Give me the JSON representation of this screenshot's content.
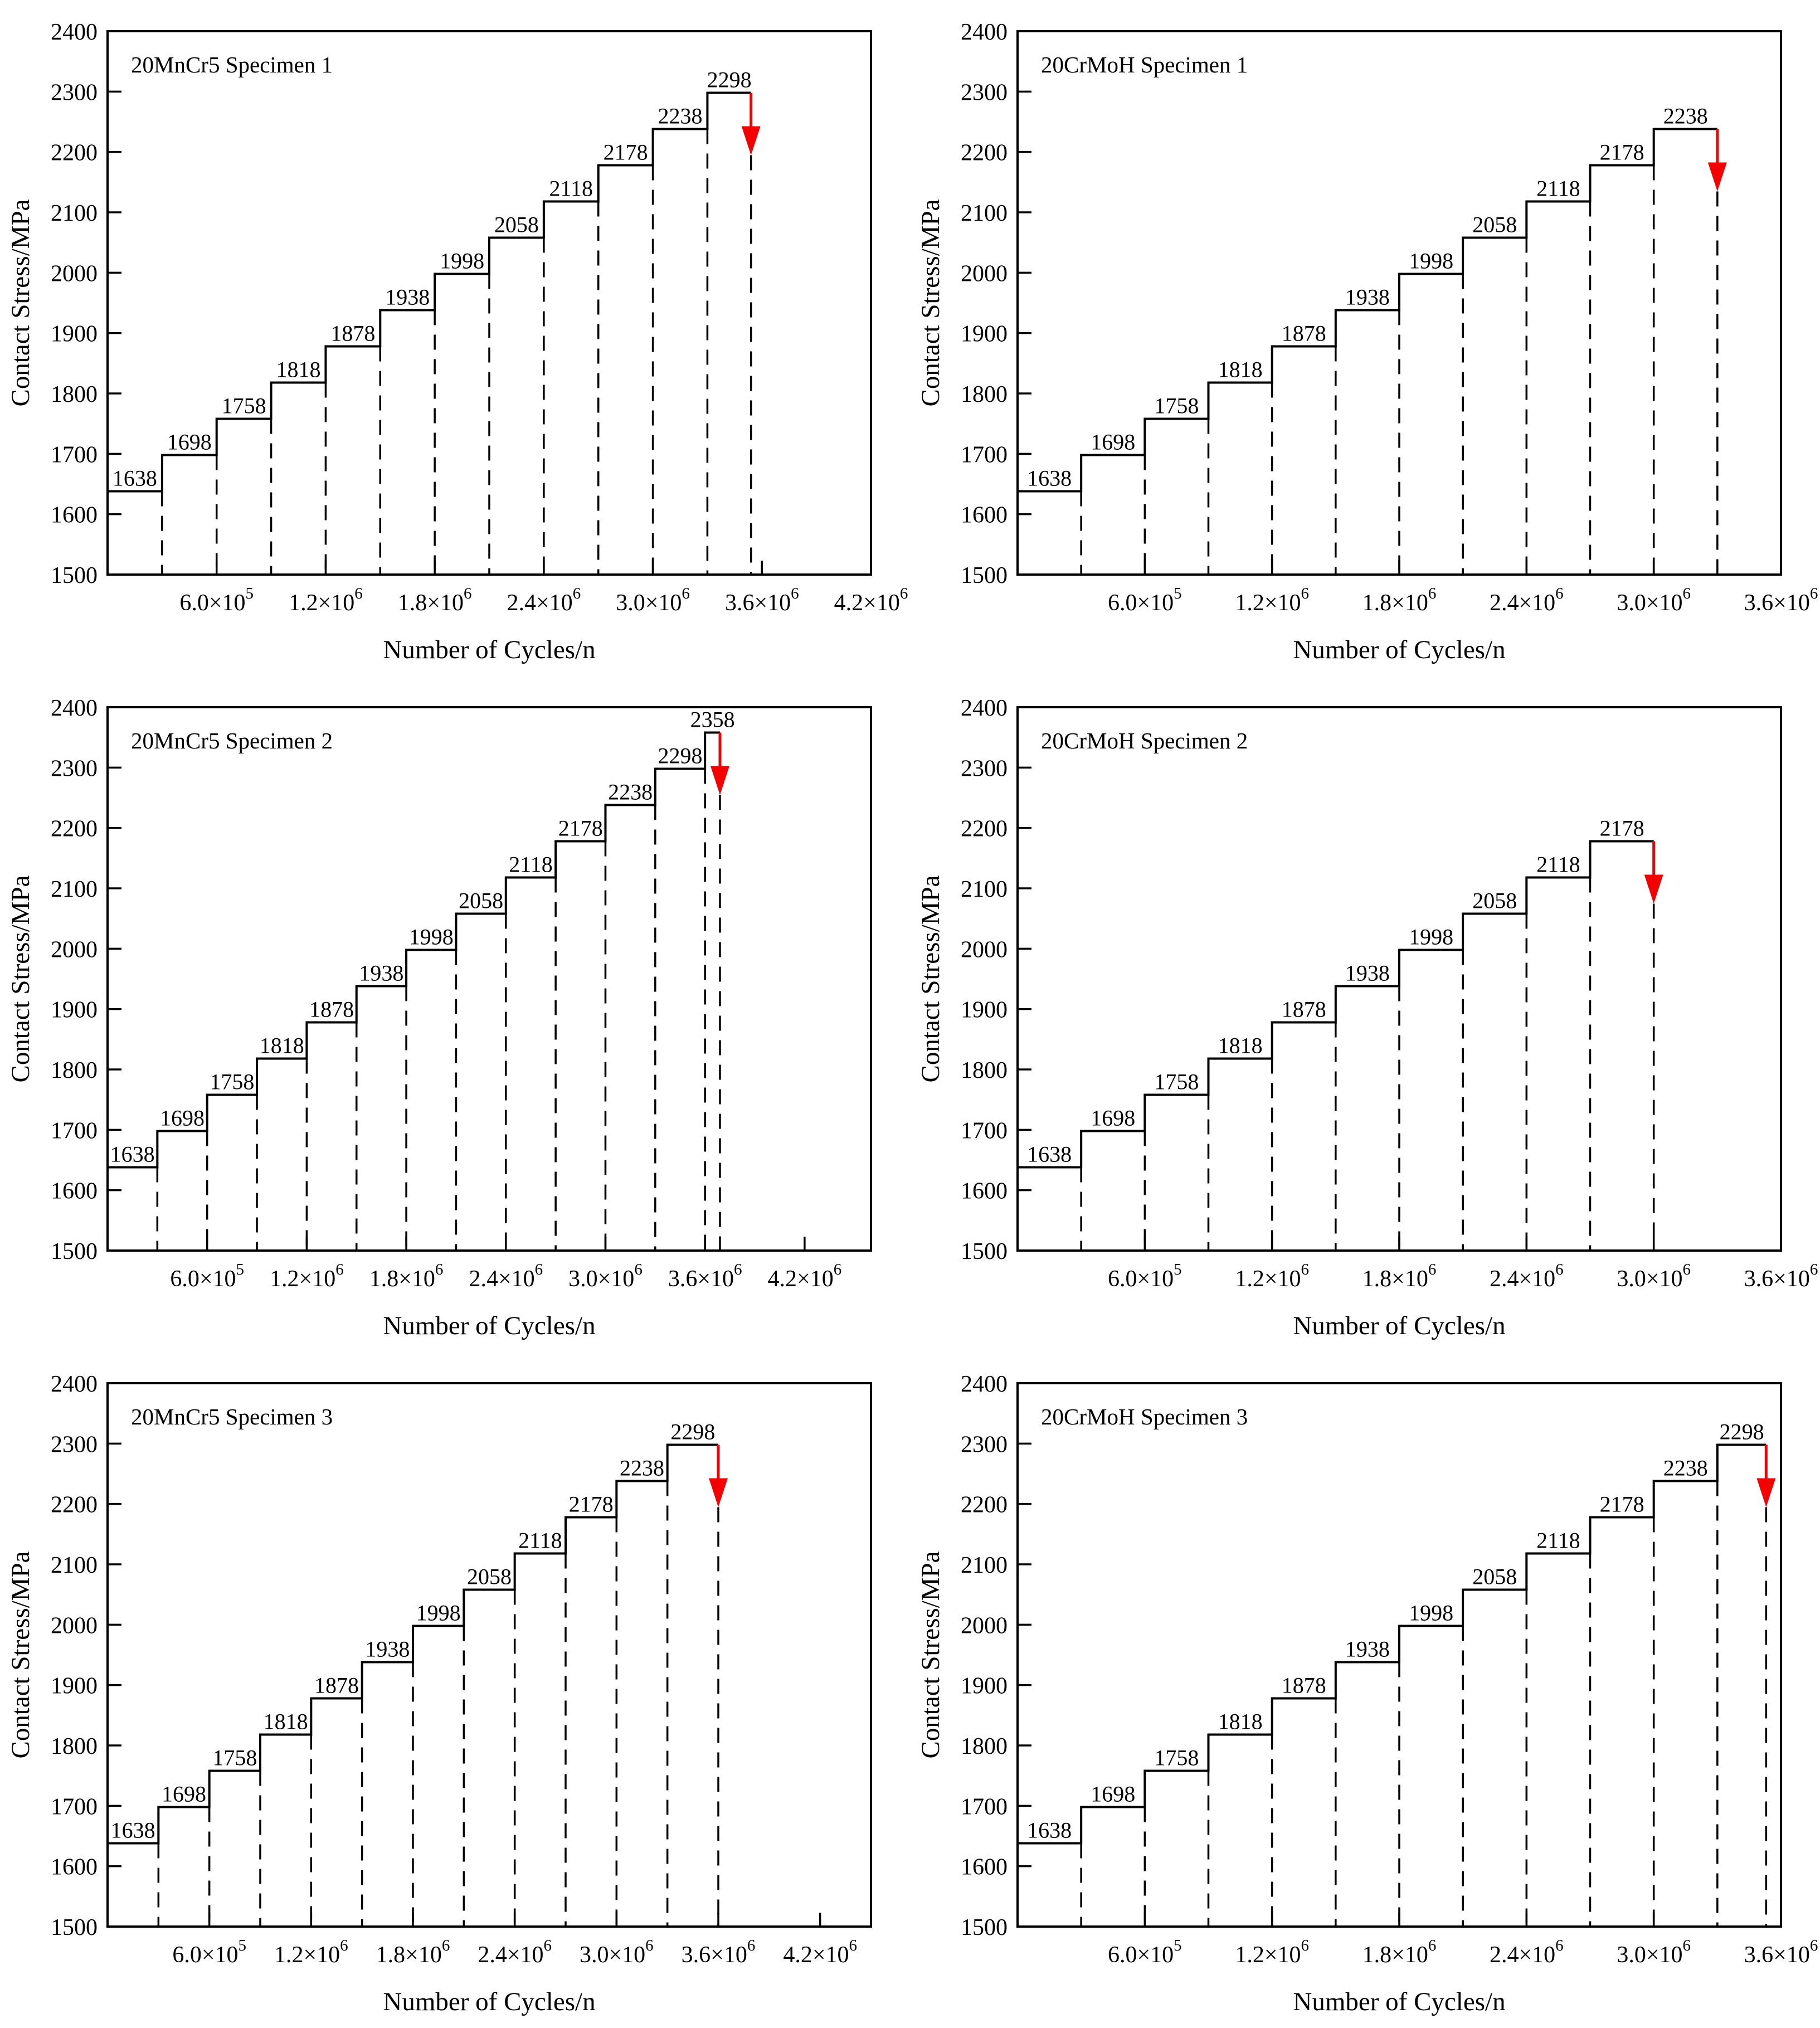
{
  "figure": {
    "background_color": "#ffffff",
    "line_color": "#000000",
    "arrow_color": "#f50000",
    "xlabel": "Number of Cycles/n",
    "ylabel": "Contact Stress/MPa",
    "ylim": [
      1500,
      2400
    ],
    "y_tick_step": 100,
    "y_tick_labels": [
      "1500",
      "1600",
      "1700",
      "1800",
      "1900",
      "2000",
      "2100",
      "2200",
      "2300",
      "2400"
    ]
  },
  "chart_data": [
    {
      "type": "step",
      "title": "20MnCr5 Specimen 1",
      "xlabel": "Number of Cycles/n",
      "ylabel": "Contact Stress/MPa",
      "ylim": [
        1500,
        2400
      ],
      "xlim": [
        0,
        4200000
      ],
      "x_tick_values": [
        600000,
        1200000,
        1800000,
        2400000,
        3000000,
        3600000,
        4200000
      ],
      "x_tick_labels": [
        "6.0×10⁵",
        "1.2×10⁶",
        "1.8×10⁶",
        "2.4×10⁶",
        "3.0×10⁶",
        "3.6×10⁶",
        "4.2×10⁶"
      ],
      "stress_levels": [
        1638,
        1698,
        1758,
        1818,
        1878,
        1938,
        1998,
        2058,
        2118,
        2178,
        2238,
        2298
      ],
      "step_cycles": 300000,
      "fail_cycles": 3540000,
      "failure_arrow": true
    },
    {
      "type": "step",
      "title": "20CrMoH Specimen 1",
      "xlabel": "Number of Cycles/n",
      "ylabel": "Contact Stress/MPa",
      "ylim": [
        1500,
        2400
      ],
      "xlim": [
        0,
        3600000
      ],
      "x_tick_values": [
        600000,
        1200000,
        1800000,
        2400000,
        3000000,
        3600000
      ],
      "x_tick_labels": [
        "6.0×10⁵",
        "1.2×10⁶",
        "1.8×10⁶",
        "2.4×10⁶",
        "3.0×10⁶",
        "3.6×10⁶"
      ],
      "stress_levels": [
        1638,
        1698,
        1758,
        1818,
        1878,
        1938,
        1998,
        2058,
        2118,
        2178,
        2238
      ],
      "step_cycles": 300000,
      "fail_cycles": 3300000,
      "failure_arrow": true
    },
    {
      "type": "step",
      "title": "20MnCr5 Specimen 2",
      "xlabel": "Number of Cycles/n",
      "ylabel": "Contact Stress/MPa",
      "ylim": [
        1500,
        2400
      ],
      "xlim": [
        0,
        4600000
      ],
      "x_tick_values": [
        600000,
        1200000,
        1800000,
        2400000,
        3000000,
        3600000,
        4200000
      ],
      "x_tick_labels": [
        "6.0×10⁵",
        "1.2×10⁶",
        "1.8×10⁶",
        "2.4×10⁶",
        "3.0×10⁶",
        "3.6×10⁶",
        "4.2×10⁶"
      ],
      "stress_levels": [
        1638,
        1698,
        1758,
        1818,
        1878,
        1938,
        1998,
        2058,
        2118,
        2178,
        2238,
        2298,
        2358
      ],
      "step_cycles": 300000,
      "fail_cycles": 3690000,
      "failure_arrow": true
    },
    {
      "type": "step",
      "title": "20CrMoH Specimen 2",
      "xlabel": "Number of Cycles/n",
      "ylabel": "Contact Stress/MPa",
      "ylim": [
        1500,
        2400
      ],
      "xlim": [
        0,
        3600000
      ],
      "x_tick_values": [
        600000,
        1200000,
        1800000,
        2400000,
        3000000,
        3600000
      ],
      "x_tick_labels": [
        "6.0×10⁵",
        "1.2×10⁶",
        "1.8×10⁶",
        "2.4×10⁶",
        "3.0×10⁶",
        "3.6×10⁶"
      ],
      "stress_levels": [
        1638,
        1698,
        1758,
        1818,
        1878,
        1938,
        1998,
        2058,
        2118,
        2178
      ],
      "step_cycles": 300000,
      "fail_cycles": 3000000,
      "failure_arrow": true
    },
    {
      "type": "step",
      "title": "20MnCr5 Specimen 3",
      "xlabel": "Number of Cycles/n",
      "ylabel": "Contact Stress/MPa",
      "ylim": [
        1500,
        2400
      ],
      "xlim": [
        0,
        4500000
      ],
      "x_tick_values": [
        600000,
        1200000,
        1800000,
        2400000,
        3000000,
        3600000,
        4200000
      ],
      "x_tick_labels": [
        "6.0×10⁵",
        "1.2×10⁶",
        "1.8×10⁶",
        "2.4×10⁶",
        "3.0×10⁶",
        "3.6×10⁶",
        "4.2×10⁶"
      ],
      "stress_levels": [
        1638,
        1698,
        1758,
        1818,
        1878,
        1938,
        1998,
        2058,
        2118,
        2178,
        2238,
        2298
      ],
      "step_cycles": 300000,
      "fail_cycles": 3600000,
      "failure_arrow": true
    },
    {
      "type": "step",
      "title": "20CrMoH Specimen 3",
      "xlabel": "Number of Cycles/n",
      "ylabel": "Contact Stress/MPa",
      "ylim": [
        1500,
        2400
      ],
      "xlim": [
        0,
        3600000
      ],
      "x_tick_values": [
        600000,
        1200000,
        1800000,
        2400000,
        3000000,
        3600000
      ],
      "x_tick_labels": [
        "6.0×10⁵",
        "1.2×10⁶",
        "1.8×10⁶",
        "2.4×10⁶",
        "3.0×10⁶",
        "3.6×10⁶"
      ],
      "stress_levels": [
        1638,
        1698,
        1758,
        1818,
        1878,
        1938,
        1998,
        2058,
        2118,
        2178,
        2238,
        2298
      ],
      "step_cycles": 300000,
      "fail_cycles": 3530000,
      "failure_arrow": true
    }
  ]
}
